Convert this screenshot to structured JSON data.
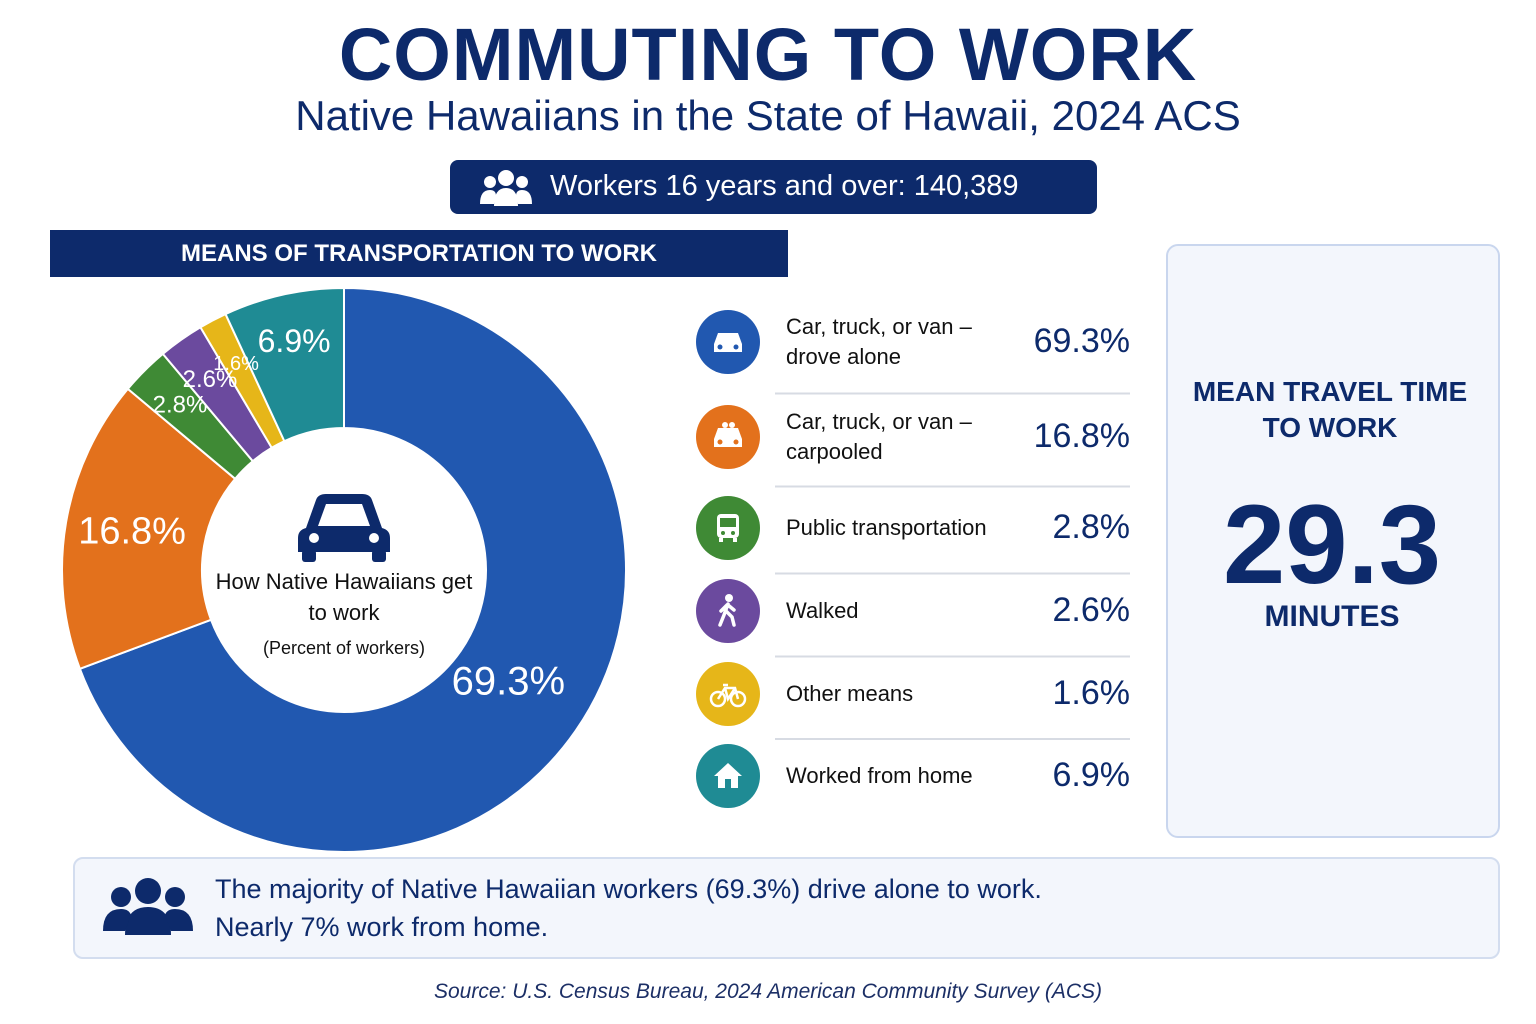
{
  "header": {
    "title": "COMMUTING TO WORK",
    "subtitle": "Native Hawaiians in the State of Hawaii, 2024 ACS",
    "workers": "Workers 16 years and over: 140,389"
  },
  "section_title": "MEANS OF TRANSPORTATION TO WORK",
  "chart_data": {
    "type": "donut",
    "center_title": "How Native Hawaiians get to work",
    "center_note": "(Percent of workers)",
    "categories": [
      "Car, truck, or van – drove alone",
      "Car, truck, or van – carpooled",
      "Public transportation",
      "Walked",
      "Other means",
      "Worked from home"
    ],
    "values": [
      69.3,
      16.8,
      2.8,
      2.6,
      1.6,
      6.9
    ],
    "value_labels": [
      "69.3%",
      "16.8%",
      "2.8%",
      "2.6%",
      "1.6%",
      "6.9%"
    ],
    "colors": [
      "#2158b0",
      "#e3711c",
      "#3f8a35",
      "#6b4a9e",
      "#e6b619",
      "#1f8b94"
    ]
  },
  "travel_time": {
    "title": "MEAN TRAVEL TIME TO WORK",
    "value": 29.3,
    "unit": "MINUTES"
  },
  "callout": [
    "The majority of Native Hawaiian workers (69.3%) drive alone to work.",
    "Nearly 7% work from home."
  ],
  "source": "Source: U.S. Census Bureau, 2024 American Community Survey (ACS)"
}
